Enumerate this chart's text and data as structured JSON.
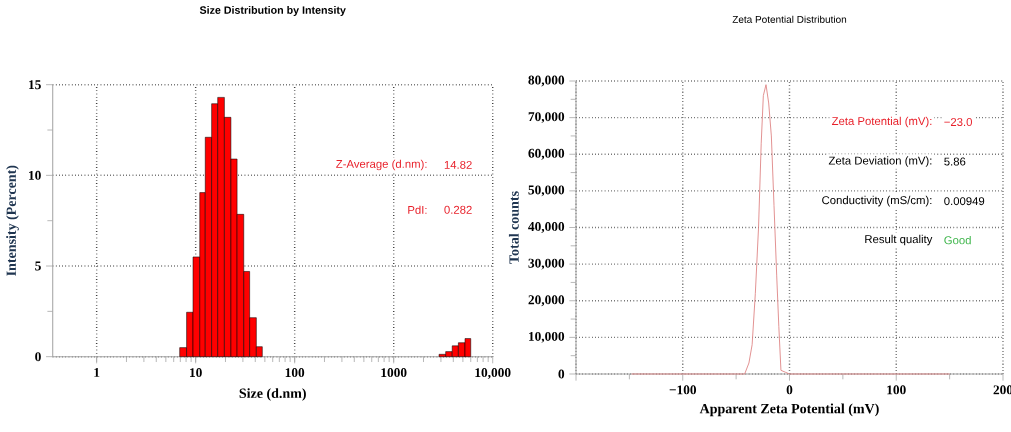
{
  "chart_data": [
    {
      "type": "histogram",
      "title": "Size Distribution by Intensity",
      "xlabel": "Size (d.nm)",
      "ylabel": "Intensity (Percent)",
      "log": "x",
      "grid": true,
      "color": "#ff0000",
      "bins": [
        6.9,
        8.1,
        9.4,
        11,
        12.5,
        14.5,
        16.7,
        19.5,
        22.7,
        26.2,
        30.6,
        35.1,
        41,
        47.1,
        2870,
        3350,
        3900,
        4500,
        5250,
        6000
      ],
      "values": [
        0.5,
        2.45,
        5.5,
        9.05,
        12.1,
        13.95,
        14.3,
        13.2,
        10.9,
        7.85,
        4.7,
        2.15,
        0.55,
        0,
        0.13,
        0.28,
        0.6,
        0.77,
        1.0
      ],
      "xlim": [
        0.36,
        10000
      ],
      "ylim": [
        0,
        15
      ],
      "xticks": [
        1,
        10,
        100,
        1000,
        {
          "value": 10000,
          "label": "10,000"
        }
      ],
      "yticks": [
        0,
        5,
        10,
        15
      ],
      "annotations": [
        "Z-Average (d.nm):",
        "14.82",
        "PdI:",
        "0.282"
      ]
    },
    {
      "type": "line",
      "title": "Zeta Potential Distribution",
      "xlabel": "Apparent Zeta Potential (mV)",
      "ylabel": "Total counts",
      "grid": true,
      "color": "#e08a8a",
      "marker": "none",
      "x": [
        -148,
        -42,
        -38,
        -35,
        -32,
        -29,
        -26.5,
        -24.5,
        -22,
        -19.5,
        -17,
        -14.5,
        -12,
        -10,
        -8,
        -4,
        0,
        150
      ],
      "values": [
        0,
        0,
        3000,
        8000,
        22000,
        40000,
        63000,
        76000,
        79000,
        74000,
        65000,
        46000,
        27000,
        13000,
        1000,
        500,
        0,
        0
      ],
      "xlim": [
        -200,
        200
      ],
      "ylim": [
        0,
        80000
      ],
      "xticks": [
        {
          "value": -200,
          "label": null
        },
        {
          "value": -100,
          "label": "−100"
        },
        0,
        100,
        200
      ],
      "yticks": [
        0,
        {
          "value": 10000,
          "label": "10,000"
        },
        {
          "value": 20000,
          "label": "20,000"
        },
        {
          "value": 30000,
          "label": "30,000"
        },
        {
          "value": 40000,
          "label": "40,000"
        },
        {
          "value": 50000,
          "label": "50,000"
        },
        {
          "value": 60000,
          "label": "60,000"
        },
        {
          "value": 70000,
          "label": "70,000"
        },
        {
          "value": 80000,
          "label": "80,000"
        }
      ],
      "annotations": [
        "Zeta Potential (mV):",
        "−23.0",
        "Zeta Deviation (mV):",
        "5.86",
        "Conductivity (mS/cm):",
        "0.00949",
        "Result quality",
        "Good"
      ]
    }
  ]
}
